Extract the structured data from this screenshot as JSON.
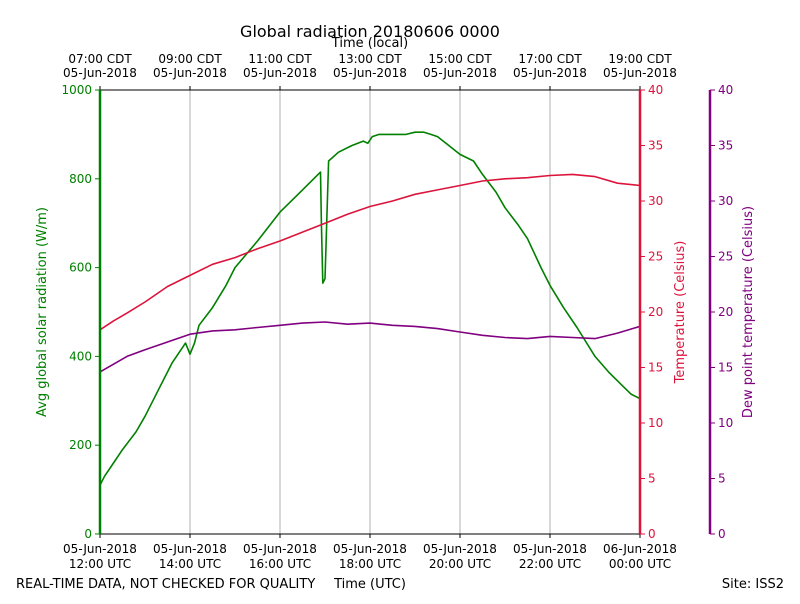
{
  "chart_data": {
    "type": "line",
    "title": "Global radiation 20180606 0000",
    "top_axis_label": "Time (local)",
    "top_ticks": [
      {
        "l1": "07:00 CDT",
        "l2": "05-Jun-2018"
      },
      {
        "l1": "09:00 CDT",
        "l2": "05-Jun-2018"
      },
      {
        "l1": "11:00 CDT",
        "l2": "05-Jun-2018"
      },
      {
        "l1": "13:00 CDT",
        "l2": "05-Jun-2018"
      },
      {
        "l1": "15:00 CDT",
        "l2": "05-Jun-2018"
      },
      {
        "l1": "17:00 CDT",
        "l2": "05-Jun-2018"
      },
      {
        "l1": "19:00 CDT",
        "l2": "05-Jun-2018"
      }
    ],
    "bottom_ticks": [
      {
        "l1": "05-Jun-2018",
        "l2": "12:00 UTC"
      },
      {
        "l1": "05-Jun-2018",
        "l2": "14:00 UTC"
      },
      {
        "l1": "05-Jun-2018",
        "l2": "16:00 UTC"
      },
      {
        "l1": "05-Jun-2018",
        "l2": "18:00 UTC"
      },
      {
        "l1": "05-Jun-2018",
        "l2": "20:00 UTC"
      },
      {
        "l1": "05-Jun-2018",
        "l2": "22:00 UTC"
      },
      {
        "l1": "06-Jun-2018",
        "l2": "00:00 UTC"
      }
    ],
    "xlabel": "Time (UTC)",
    "xlim": [
      12,
      24
    ],
    "y_left": {
      "label": "Avg global solar radiation (W/m)",
      "ticks": [
        "0",
        "200",
        "400",
        "600",
        "800",
        "1000"
      ],
      "ylim": [
        0,
        1000
      ],
      "color": "#008000"
    },
    "y_right1": {
      "label": "Temperature (Celsius)",
      "ticks": [
        "0",
        "5",
        "10",
        "15",
        "20",
        "25",
        "30",
        "35",
        "40"
      ],
      "ylim": [
        0,
        40
      ],
      "color": "#dc143c"
    },
    "y_right2": {
      "label": "Dew point temperature (Celsius)",
      "ticks": [
        "0",
        "5",
        "10",
        "15",
        "20",
        "25",
        "30",
        "35",
        "40"
      ],
      "ylim": [
        0,
        40
      ],
      "color": "#800080"
    },
    "grid": "x-major",
    "series": [
      {
        "name": "Avg global solar radiation",
        "axis": "left",
        "color": "#008000",
        "x": [
          12.0,
          12.1,
          12.3,
          12.5,
          12.8,
          13.0,
          13.3,
          13.6,
          13.9,
          14.0,
          14.1,
          14.2,
          14.5,
          14.8,
          15.0,
          15.5,
          16.0,
          16.5,
          16.9,
          16.92,
          16.95,
          17.0,
          17.08,
          17.3,
          17.6,
          17.85,
          17.95,
          18.05,
          18.2,
          18.5,
          18.8,
          19.0,
          19.2,
          19.35,
          19.5,
          19.75,
          20.0,
          20.3,
          20.5,
          20.8,
          21.0,
          21.3,
          21.5,
          21.8,
          22.0,
          22.3,
          22.6,
          23.0,
          23.3,
          23.6,
          23.8,
          24.0
        ],
        "y": [
          110,
          130,
          160,
          190,
          230,
          265,
          325,
          385,
          430,
          405,
          430,
          470,
          510,
          560,
          600,
          660,
          725,
          775,
          815,
          700,
          565,
          575,
          840,
          860,
          875,
          885,
          880,
          895,
          900,
          900,
          900,
          905,
          905,
          900,
          895,
          875,
          855,
          840,
          810,
          770,
          735,
          695,
          665,
          600,
          560,
          510,
          465,
          400,
          365,
          335,
          315,
          305
        ]
      },
      {
        "name": "Temperature",
        "axis": "right1",
        "color": "#dc143c",
        "x": [
          12.0,
          12.3,
          12.6,
          13.0,
          13.5,
          14.0,
          14.5,
          15.0,
          15.5,
          16.0,
          16.5,
          17.0,
          17.5,
          18.0,
          18.5,
          19.0,
          19.5,
          20.0,
          20.5,
          21.0,
          21.5,
          22.0,
          22.5,
          23.0,
          23.5,
          24.0
        ],
        "y": [
          18.4,
          19.2,
          19.9,
          20.9,
          22.3,
          23.3,
          24.3,
          24.9,
          25.7,
          26.4,
          27.2,
          28.0,
          28.8,
          29.5,
          30.0,
          30.6,
          31.0,
          31.4,
          31.8,
          32.0,
          32.1,
          32.3,
          32.4,
          32.2,
          31.6,
          31.4
        ]
      },
      {
        "name": "Dew point temperature",
        "axis": "right2",
        "color": "#800080",
        "x": [
          12.0,
          12.3,
          12.6,
          13.0,
          13.5,
          14.0,
          14.5,
          15.0,
          15.5,
          16.0,
          16.5,
          17.0,
          17.5,
          18.0,
          18.5,
          19.0,
          19.5,
          20.0,
          20.5,
          21.0,
          21.5,
          22.0,
          22.5,
          23.0,
          23.5,
          24.0
        ],
        "y": [
          14.6,
          15.3,
          16.0,
          16.6,
          17.3,
          18.0,
          18.3,
          18.4,
          18.6,
          18.8,
          19.0,
          19.1,
          18.9,
          19.0,
          18.8,
          18.7,
          18.5,
          18.2,
          17.9,
          17.7,
          17.6,
          17.8,
          17.7,
          17.6,
          18.1,
          18.7
        ]
      }
    ]
  },
  "footer": {
    "disclaimer": "REAL-TIME DATA, NOT CHECKED FOR QUALITY",
    "site": "Site: ISS2"
  }
}
